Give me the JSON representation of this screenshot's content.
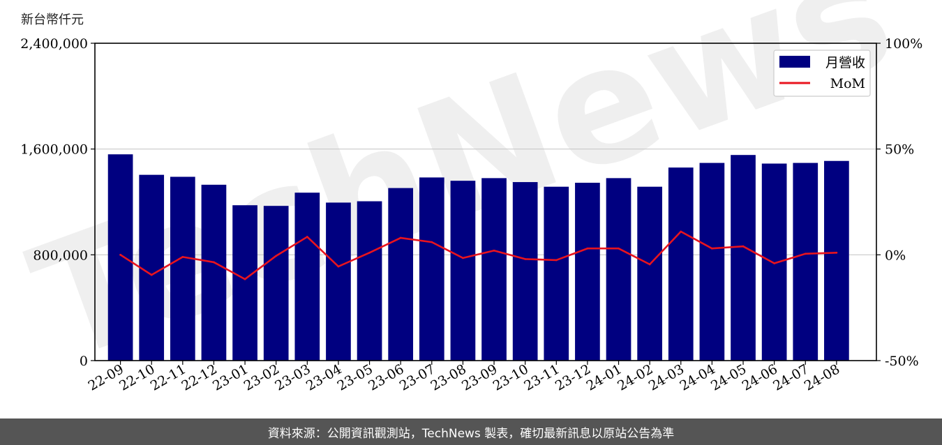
{
  "unit_label": "新台幣仟元",
  "footer_text": "資料來源：公開資訊觀測站，TechNews 製表，確切最新訊息以原站公告為準",
  "watermark_text": "TechNews",
  "colors": {
    "bar": "#000080",
    "line": "#e8141e",
    "grid": "#c8c8c8"
  },
  "chart_data": {
    "type": "bar",
    "categories": [
      "22-09",
      "22-10",
      "22-11",
      "22-12",
      "23-01",
      "23-02",
      "23-03",
      "23-04",
      "23-05",
      "23-06",
      "23-07",
      "23-08",
      "23-09",
      "23-10",
      "23-11",
      "23-12",
      "24-01",
      "24-02",
      "24-03",
      "24-04",
      "24-05",
      "24-06",
      "24-07",
      "24-08"
    ],
    "series": [
      {
        "name": "月營收",
        "axis": "left",
        "type": "bar",
        "values": [
          1560000,
          1405000,
          1390000,
          1330000,
          1175000,
          1170000,
          1270000,
          1195000,
          1205000,
          1305000,
          1385000,
          1360000,
          1380000,
          1350000,
          1315000,
          1345000,
          1380000,
          1315000,
          1460000,
          1495000,
          1555000,
          1490000,
          1495000,
          1510000
        ]
      },
      {
        "name": "MoM",
        "axis": "right",
        "type": "line",
        "unit": "%",
        "values": [
          0.0,
          -9.5,
          -1.0,
          -3.5,
          -11.5,
          -0.5,
          8.5,
          -5.5,
          1.0,
          8.0,
          6.0,
          -1.5,
          2.0,
          -2.0,
          -2.5,
          3.0,
          3.0,
          -4.5,
          11.0,
          3.0,
          4.0,
          -4.0,
          0.5,
          1.0
        ]
      }
    ],
    "y_left": {
      "ylim": [
        0,
        2400000
      ],
      "ticks": [
        "0",
        "800,000",
        "1,600,000",
        "2,400,000"
      ],
      "tick_values": [
        0,
        800000,
        1600000,
        2400000
      ]
    },
    "y_right": {
      "ylim": [
        -50,
        100
      ],
      "ticks": [
        "-50%",
        "0%",
        "50%",
        "100%"
      ],
      "tick_values": [
        -50,
        0,
        50,
        100
      ]
    },
    "grid": "horizontal",
    "legend_position": "top-right",
    "xlabel": "",
    "ylabel": ""
  }
}
